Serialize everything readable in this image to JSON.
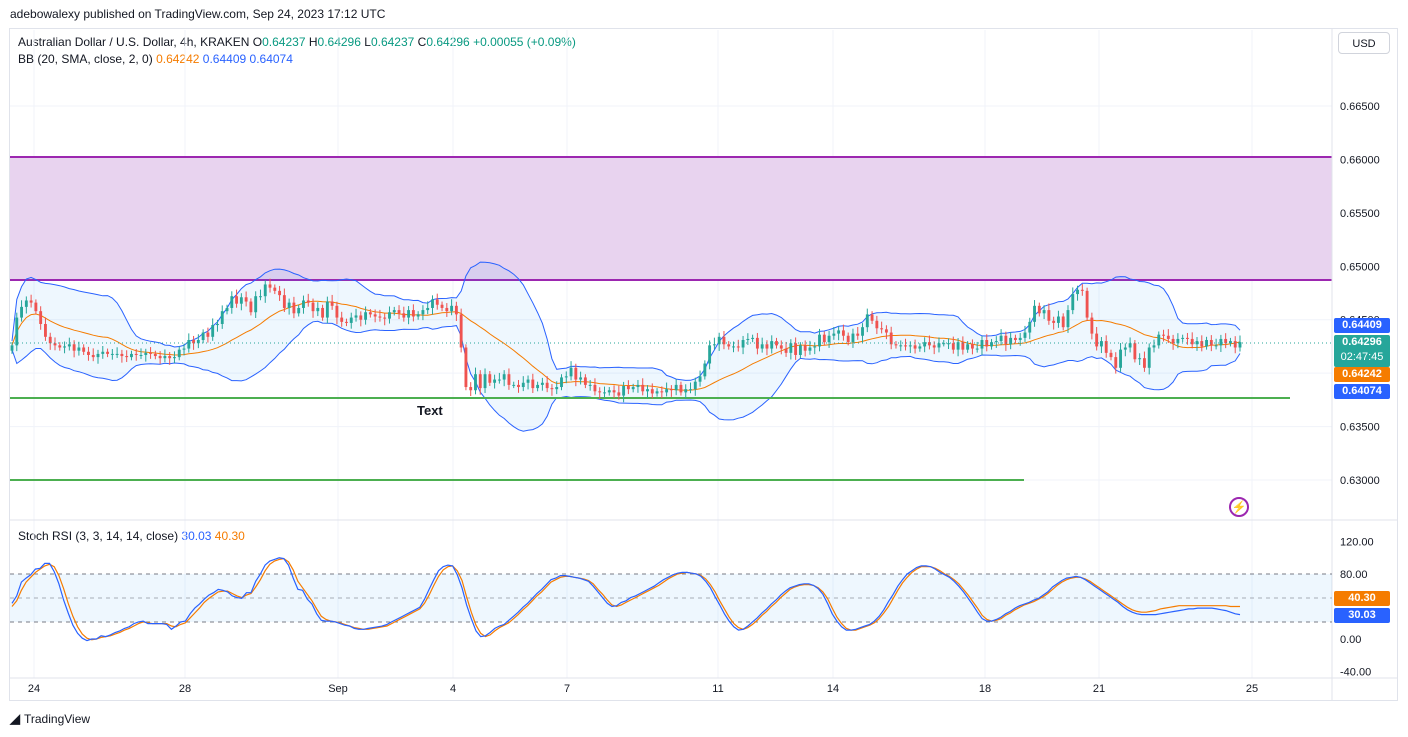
{
  "header": {
    "publisher_line": "adebowalexy published on TradingView.com, Sep 24, 2023 17:12 UTC"
  },
  "legend": {
    "symbol": "Australian Dollar / U.S. Dollar, 4h, KRAKEN",
    "o_label": "O",
    "o": "0.64237",
    "h_label": "H",
    "h": "0.64296",
    "l_label": "L",
    "l": "0.64237",
    "c_label": "C",
    "c": "0.64296",
    "change": "+0.00055 (+0.09%)",
    "bb_label": "BB (20, SMA, close, 2, 0)",
    "bb_basis": "0.64242",
    "bb_upper": "0.64409",
    "bb_lower": "0.64074",
    "rsi_label": "Stoch RSI (3, 3, 14, 14, close)",
    "rsi_k": "30.03",
    "rsi_d": "40.30"
  },
  "currency_button": "USD",
  "price_axis": [
    "0.66500",
    "0.66000",
    "0.65500",
    "0.65000",
    "0.64500",
    "0.63500",
    "0.63000"
  ],
  "price_tags": {
    "upper": "0.64409",
    "last": "0.64296",
    "countdown": "02:47:45",
    "basis": "0.64242",
    "lower": "0.64074"
  },
  "rsi_axis": [
    "120.00",
    "80.00",
    "0.00",
    "-40.00"
  ],
  "rsi_tags": {
    "d": "40.30",
    "k": "30.03"
  },
  "time_axis": [
    "24",
    "28",
    "Sep",
    "4",
    "7",
    "11",
    "14",
    "18",
    "21",
    "25"
  ],
  "annotation_text": "Text",
  "footer_brand": "TradingView",
  "colors": {
    "up": "#26a69a",
    "down": "#ef5350",
    "basis": "#f57c00",
    "band": "#2962ff",
    "zone_fill": "#e8d3ef",
    "zone_line": "#9c27b0",
    "support": "#4caf50",
    "rsi_d": "#f57c00",
    "rsi_k": "#2962ff"
  },
  "chart_data": [
    {
      "type": "candlestick",
      "title": "Australian Dollar / U.S. Dollar, 4h, KRAKEN",
      "ylim": [
        0.6285,
        0.6682
      ],
      "x_ticks": [
        "24",
        "28",
        "Sep",
        "4",
        "7",
        "11",
        "14",
        "18",
        "21",
        "25"
      ],
      "close": [
        0.6426,
        0.6452,
        0.6462,
        0.6468,
        0.6466,
        0.6458,
        0.6446,
        0.6434,
        0.6428,
        0.6426,
        0.6424,
        0.6425,
        0.6427,
        0.6421,
        0.6424,
        0.642,
        0.6417,
        0.6415,
        0.6418,
        0.642,
        0.6418,
        0.6418,
        0.6418,
        0.6416,
        0.6415,
        0.6418,
        0.6417,
        0.6417,
        0.6419,
        0.6418,
        0.6416,
        0.6414,
        0.6416,
        0.6414,
        0.6415,
        0.6422,
        0.6423,
        0.6431,
        0.6428,
        0.6431,
        0.6438,
        0.6434,
        0.6445,
        0.6446,
        0.6458,
        0.6461,
        0.6472,
        0.6465,
        0.6471,
        0.6467,
        0.6457,
        0.6472,
        0.6472,
        0.6483,
        0.648,
        0.6477,
        0.6473,
        0.6461,
        0.6466,
        0.6456,
        0.6461,
        0.6468,
        0.6466,
        0.6458,
        0.6461,
        0.6452,
        0.6467,
        0.6463,
        0.6452,
        0.6448,
        0.6447,
        0.6452,
        0.6454,
        0.645,
        0.6457,
        0.6455,
        0.6453,
        0.6452,
        0.6451,
        0.6457,
        0.6459,
        0.6456,
        0.6452,
        0.6459,
        0.6453,
        0.6455,
        0.6459,
        0.6461,
        0.6469,
        0.6464,
        0.6461,
        0.6458,
        0.6463,
        0.6455,
        0.6424,
        0.6387,
        0.6384,
        0.6399,
        0.6386,
        0.6399,
        0.6391,
        0.6394,
        0.6394,
        0.6399,
        0.6389,
        0.6389,
        0.6387,
        0.6391,
        0.6394,
        0.6386,
        0.6389,
        0.6391,
        0.6386,
        0.6385,
        0.6387,
        0.6396,
        0.6397,
        0.6405,
        0.6394,
        0.6396,
        0.6389,
        0.6389,
        0.6383,
        0.6382,
        0.6382,
        0.6384,
        0.6382,
        0.6379,
        0.6388,
        0.6385,
        0.6387,
        0.6389,
        0.6383,
        0.6385,
        0.6381,
        0.6383,
        0.6382,
        0.6385,
        0.6384,
        0.6389,
        0.6382,
        0.6385,
        0.6385,
        0.6392,
        0.6397,
        0.6409,
        0.6426,
        0.6427,
        0.6434,
        0.6427,
        0.6425,
        0.6425,
        0.6424,
        0.6431,
        0.6432,
        0.6433,
        0.6423,
        0.6427,
        0.6423,
        0.643,
        0.6426,
        0.6423,
        0.6419,
        0.6428,
        0.6417,
        0.6426,
        0.6421,
        0.6424,
        0.6425,
        0.6436,
        0.6429,
        0.6435,
        0.6437,
        0.644,
        0.6435,
        0.6429,
        0.6437,
        0.6435,
        0.6443,
        0.6455,
        0.6449,
        0.6442,
        0.6441,
        0.6438,
        0.6427,
        0.6426,
        0.6426,
        0.6425,
        0.6426,
        0.6423,
        0.6425,
        0.6429,
        0.6426,
        0.6424,
        0.6428,
        0.6428,
        0.6428,
        0.6422,
        0.6429,
        0.6422,
        0.6427,
        0.6423,
        0.6423,
        0.6431,
        0.6425,
        0.6429,
        0.643,
        0.6435,
        0.6427,
        0.6433,
        0.6431,
        0.6433,
        0.6438,
        0.6448,
        0.6463,
        0.6456,
        0.6459,
        0.6449,
        0.6447,
        0.6453,
        0.6443,
        0.6459,
        0.6474,
        0.6478,
        0.6477,
        0.6452,
        0.6437,
        0.6425,
        0.643,
        0.6419,
        0.6415,
        0.6405,
        0.6422,
        0.6424,
        0.6428,
        0.6413,
        0.6414,
        0.6405,
        0.6424,
        0.6426,
        0.6436,
        0.6435,
        0.6432,
        0.6428,
        0.6432,
        0.6433,
        0.6432,
        0.6427,
        0.643,
        0.6425,
        0.6431,
        0.6426,
        0.6426,
        0.6432,
        0.6428,
        0.643,
        0.6424,
        0.6429
      ],
      "bb": {
        "basis": 0.64242,
        "upper": 0.64409,
        "lower": 0.64074
      },
      "last_price": 0.64296,
      "zones": [
        {
          "from": 0.6488,
          "to": 0.6601
        }
      ],
      "support_lines": [
        0.6381,
        0.6301
      ]
    },
    {
      "type": "line",
      "title": "Stoch RSI (3, 3, 14, 14, close)",
      "ylim": [
        -40,
        120
      ],
      "bands": [
        80,
        50,
        20
      ],
      "series": [
        {
          "name": "K",
          "last": 30.03,
          "values": [
            44,
            53,
            70,
            75,
            79,
            86,
            87,
            93,
            93,
            83,
            68,
            48,
            32,
            17,
            7,
            1,
            -2,
            0,
            0,
            4,
            3,
            5,
            8,
            10,
            13,
            15,
            19,
            21,
            22,
            19,
            19,
            19,
            19,
            18,
            12,
            16,
            21,
            22,
            31,
            38,
            43,
            49,
            54,
            57,
            61,
            60,
            58,
            53,
            51,
            50,
            57,
            57,
            71,
            80,
            91,
            96,
            98,
            100,
            99,
            91,
            75,
            61,
            60,
            49,
            43,
            31,
            23,
            22,
            22,
            21,
            19,
            17,
            16,
            13,
            12,
            12,
            13,
            14,
            15,
            16,
            18,
            21,
            24,
            27,
            30,
            33,
            36,
            39,
            49,
            61,
            73,
            84,
            89,
            91,
            90,
            79,
            63,
            42,
            25,
            10,
            3,
            4,
            8,
            13,
            16,
            18,
            23,
            28,
            33,
            39,
            44,
            50,
            56,
            61,
            67,
            73,
            75,
            78,
            78,
            77,
            76,
            75,
            73,
            71,
            65,
            58,
            51,
            44,
            40,
            41,
            45,
            47,
            51,
            53,
            56,
            59,
            62,
            65,
            69,
            73,
            76,
            79,
            81,
            82,
            82,
            81,
            80,
            77,
            71,
            63,
            52,
            42,
            31,
            22,
            15,
            11,
            12,
            16,
            21,
            26,
            32,
            37,
            43,
            48,
            54,
            59,
            63,
            65,
            67,
            68,
            68,
            66,
            62,
            55,
            44,
            31,
            22,
            15,
            11,
            11,
            12,
            14,
            16,
            18,
            22,
            28,
            36,
            46,
            55,
            65,
            73,
            80,
            84,
            88,
            90,
            90,
            89,
            86,
            82,
            79,
            76,
            71,
            65,
            58,
            50,
            42,
            33,
            25,
            22,
            22,
            24,
            27,
            31,
            34,
            38,
            41,
            43,
            45,
            48,
            50,
            54,
            58,
            64,
            68,
            72,
            75,
            76,
            77,
            76,
            73,
            69,
            65,
            61,
            57,
            53,
            49,
            45,
            40,
            36,
            33,
            31,
            30,
            30,
            30,
            30,
            31,
            32,
            33,
            34,
            35,
            36,
            37,
            37,
            38,
            38,
            38,
            38,
            37,
            36,
            35,
            33,
            31,
            30
          ]
        },
        {
          "name": "D",
          "last": 40.3,
          "values": [
            40,
            47,
            60,
            70,
            76,
            82,
            86,
            90,
            92,
            89,
            78,
            62,
            44,
            28,
            15,
            6,
            1,
            -1,
            0,
            2,
            3,
            4,
            6,
            8,
            11,
            13,
            16,
            19,
            21,
            20,
            19,
            19,
            19,
            19,
            16,
            15,
            18,
            20,
            26,
            32,
            38,
            45,
            50,
            54,
            58,
            59,
            59,
            56,
            53,
            51,
            54,
            56,
            64,
            73,
            84,
            92,
            96,
            98,
            99,
            95,
            85,
            71,
            63,
            55,
            47,
            37,
            28,
            24,
            22,
            21,
            20,
            18,
            16,
            14,
            13,
            12,
            12,
            13,
            14,
            15,
            16,
            19,
            22,
            25,
            28,
            31,
            34,
            37,
            44,
            54,
            66,
            77,
            85,
            89,
            90,
            84,
            72,
            52,
            33,
            17,
            7,
            3,
            5,
            10,
            14,
            17,
            20,
            25,
            30,
            36,
            41,
            47,
            53,
            58,
            64,
            70,
            73,
            76,
            77,
            77,
            76,
            75,
            74,
            72,
            68,
            61,
            55,
            48,
            42,
            40,
            42,
            45,
            48,
            51,
            54,
            57,
            60,
            63,
            66,
            70,
            74,
            77,
            80,
            81,
            82,
            81,
            80,
            78,
            74,
            67,
            58,
            47,
            37,
            27,
            19,
            14,
            12,
            14,
            18,
            23,
            29,
            34,
            40,
            45,
            51,
            56,
            61,
            64,
            66,
            67,
            67,
            66,
            63,
            58,
            50,
            38,
            27,
            19,
            13,
            11,
            11,
            13,
            15,
            17,
            20,
            25,
            32,
            40,
            50,
            60,
            69,
            76,
            82,
            86,
            89,
            89,
            89,
            87,
            84,
            80,
            77,
            73,
            68,
            61,
            54,
            46,
            38,
            29,
            24,
            22,
            23,
            25,
            29,
            32,
            36,
            39,
            42,
            44,
            46,
            49,
            52,
            56,
            61,
            66,
            70,
            73,
            75,
            76,
            76,
            74,
            71,
            67,
            63,
            59,
            55,
            51,
            47,
            43,
            39,
            36,
            34,
            33,
            33,
            34,
            35,
            37,
            38,
            39,
            40,
            41,
            41,
            41,
            41,
            41,
            41,
            41,
            41,
            41,
            41,
            41,
            40,
            40,
            40
          ]
        }
      ]
    }
  ]
}
